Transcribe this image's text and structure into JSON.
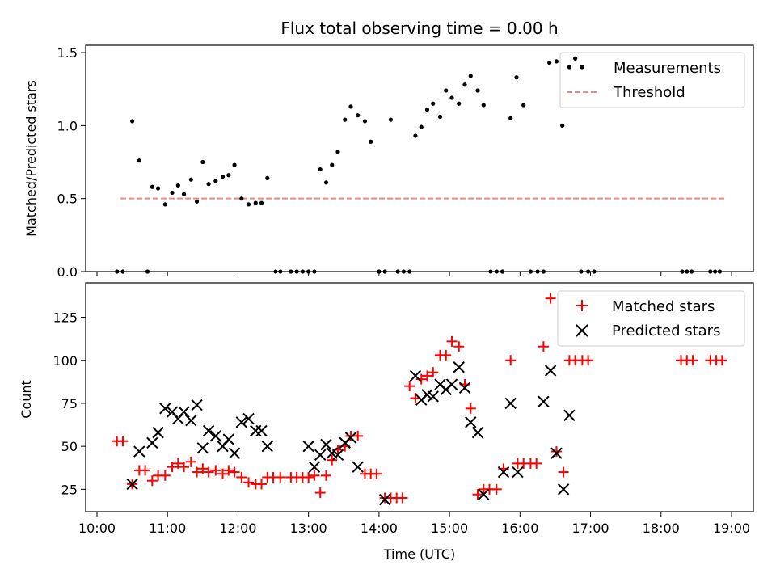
{
  "chart_data": [
    {
      "type": "scatter",
      "title": "Flux total observing time = 0.00 h",
      "ylabel": "Matched/Predicted stars",
      "xlabel": "",
      "xlim": [
        "10:00",
        "19:00"
      ],
      "ylim": [
        0,
        1.55
      ],
      "yticks": [
        0.0,
        0.5,
        1.0,
        1.5
      ],
      "ytick_labels": [
        "0.0",
        "0.5",
        "1.0",
        "1.5"
      ],
      "legend_position": "top-right",
      "series": [
        {
          "name": "Measurements",
          "marker": "dot",
          "color": "#000000",
          "points": [
            [
              "10:17",
              0
            ],
            [
              "10:22",
              0
            ],
            [
              "10:30",
              1.03
            ],
            [
              "10:36",
              0.76
            ],
            [
              "10:43",
              0
            ],
            [
              "10:47",
              0.58
            ],
            [
              "10:52",
              0.57
            ],
            [
              "10:58",
              0.46
            ],
            [
              "11:04",
              0.54
            ],
            [
              "11:09",
              0.59
            ],
            [
              "11:14",
              0.53
            ],
            [
              "11:20",
              0.63
            ],
            [
              "11:25",
              0.48
            ],
            [
              "11:30",
              0.75
            ],
            [
              "11:35",
              0.6
            ],
            [
              "11:41",
              0.62
            ],
            [
              "11:47",
              0.65
            ],
            [
              "11:52",
              0.66
            ],
            [
              "11:57",
              0.73
            ],
            [
              "12:03",
              0.5
            ],
            [
              "12:09",
              0.46
            ],
            [
              "12:15",
              0.47
            ],
            [
              "12:20",
              0.47
            ],
            [
              "12:25",
              0.64
            ],
            [
              "12:32",
              0
            ],
            [
              "12:36",
              0
            ],
            [
              "12:45",
              0
            ],
            [
              "12:50",
              0
            ],
            [
              "12:55",
              0
            ],
            [
              "13:00",
              0
            ],
            [
              "13:05",
              0
            ],
            [
              "13:10",
              0.7
            ],
            [
              "13:15",
              0.61
            ],
            [
              "13:20",
              0.73
            ],
            [
              "13:25",
              0.82
            ],
            [
              "13:31",
              1.04
            ],
            [
              "13:36",
              1.13
            ],
            [
              "13:42",
              1.07
            ],
            [
              "13:48",
              1.03
            ],
            [
              "13:53",
              0.89
            ],
            [
              "14:00",
              0
            ],
            [
              "14:05",
              0
            ],
            [
              "14:10",
              1.04
            ],
            [
              "14:16",
              0
            ],
            [
              "14:21",
              0
            ],
            [
              "14:26",
              0
            ],
            [
              "14:31",
              0.93
            ],
            [
              "14:36",
              0.99
            ],
            [
              "14:41",
              1.11
            ],
            [
              "14:46",
              1.15
            ],
            [
              "14:52",
              1.06
            ],
            [
              "14:57",
              1.24
            ],
            [
              "15:02",
              1.19
            ],
            [
              "15:08",
              1.15
            ],
            [
              "15:13",
              1.28
            ],
            [
              "15:18",
              1.34
            ],
            [
              "15:24",
              1.24
            ],
            [
              "15:29",
              1.14
            ],
            [
              "15:35",
              0
            ],
            [
              "15:40",
              0
            ],
            [
              "15:45",
              0
            ],
            [
              "15:52",
              1.05
            ],
            [
              "15:57",
              1.33
            ],
            [
              "16:03",
              1.14
            ],
            [
              "16:09",
              0
            ],
            [
              "16:15",
              0
            ],
            [
              "16:20",
              0
            ],
            [
              "16:25",
              1.43
            ],
            [
              "16:31",
              1.44
            ],
            [
              "16:36",
              1.0
            ],
            [
              "16:42",
              1.4
            ],
            [
              "16:47",
              1.46
            ],
            [
              "16:52",
              0
            ],
            [
              "16:58",
              0
            ],
            [
              "17:03",
              0
            ],
            [
              "18:18",
              0
            ],
            [
              "18:22",
              0
            ],
            [
              "18:26",
              0
            ],
            [
              "18:42",
              0
            ],
            [
              "18:46",
              0
            ],
            [
              "18:50",
              0
            ]
          ]
        },
        {
          "name": "Threshold",
          "marker": "dashed-line",
          "color": "#ff7f7f",
          "points": [
            [
              "10:20",
              0.5
            ],
            [
              "18:55",
              0.5
            ]
          ]
        }
      ]
    },
    {
      "type": "scatter",
      "title": "",
      "xlabel": "Time (UTC)",
      "ylabel": "Count",
      "xlim": [
        "10:00",
        "19:00"
      ],
      "xticks": [
        "10:00",
        "11:00",
        "12:00",
        "13:00",
        "14:00",
        "15:00",
        "16:00",
        "17:00",
        "18:00",
        "19:00"
      ],
      "ylim": [
        12,
        145
      ],
      "yticks": [
        25,
        50,
        75,
        100,
        125
      ],
      "ytick_labels": [
        "25",
        "50",
        "75",
        "100",
        "125"
      ],
      "legend_position": "top-right",
      "series": [
        {
          "name": "Matched stars",
          "marker": "plus",
          "color": "#ff0000",
          "points": [
            [
              "10:17",
              53
            ],
            [
              "10:22",
              53
            ],
            [
              "10:30",
              28
            ],
            [
              "10:36",
              36
            ],
            [
              "10:41",
              36
            ],
            [
              "10:47",
              30
            ],
            [
              "10:52",
              33
            ],
            [
              "10:58",
              33
            ],
            [
              "11:04",
              38
            ],
            [
              "11:09",
              40
            ],
            [
              "11:14",
              38
            ],
            [
              "11:20",
              41
            ],
            [
              "11:25",
              35
            ],
            [
              "11:30",
              37
            ],
            [
              "11:35",
              35
            ],
            [
              "11:41",
              36
            ],
            [
              "11:47",
              34
            ],
            [
              "11:52",
              36
            ],
            [
              "11:57",
              35
            ],
            [
              "12:03",
              32
            ],
            [
              "12:09",
              29
            ],
            [
              "12:15",
              28
            ],
            [
              "12:20",
              28
            ],
            [
              "12:25",
              32
            ],
            [
              "12:30",
              32
            ],
            [
              "12:36",
              32
            ],
            [
              "12:45",
              32
            ],
            [
              "12:50",
              32
            ],
            [
              "12:55",
              32
            ],
            [
              "13:00",
              32
            ],
            [
              "13:05",
              33
            ],
            [
              "13:10",
              23
            ],
            [
              "13:15",
              33
            ],
            [
              "13:20",
              42
            ],
            [
              "13:25",
              48
            ],
            [
              "13:31",
              50
            ],
            [
              "13:36",
              56
            ],
            [
              "13:42",
              56
            ],
            [
              "13:48",
              34
            ],
            [
              "13:53",
              34
            ],
            [
              "13:58",
              34
            ],
            [
              "14:05",
              20
            ],
            [
              "14:10",
              20
            ],
            [
              "14:15",
              20
            ],
            [
              "14:20",
              20
            ],
            [
              "14:26",
              85
            ],
            [
              "14:31",
              78
            ],
            [
              "14:36",
              89
            ],
            [
              "14:41",
              91
            ],
            [
              "14:46",
              93
            ],
            [
              "14:52",
              103
            ],
            [
              "14:57",
              103
            ],
            [
              "15:02",
              111
            ],
            [
              "15:08",
              108
            ],
            [
              "15:13",
              86
            ],
            [
              "15:18",
              72
            ],
            [
              "15:24",
              22
            ],
            [
              "15:29",
              25
            ],
            [
              "15:34",
              25
            ],
            [
              "15:40",
              25
            ],
            [
              "15:46",
              37
            ],
            [
              "15:52",
              100
            ],
            [
              "15:58",
              40
            ],
            [
              "16:03",
              40
            ],
            [
              "16:09",
              40
            ],
            [
              "16:14",
              40
            ],
            [
              "16:20",
              108
            ],
            [
              "16:26",
              136
            ],
            [
              "16:31",
              47
            ],
            [
              "16:37",
              35
            ],
            [
              "16:42",
              100
            ],
            [
              "16:47",
              100
            ],
            [
              "16:53",
              100
            ],
            [
              "16:58",
              100
            ],
            [
              "18:17",
              100
            ],
            [
              "18:22",
              100
            ],
            [
              "18:27",
              100
            ],
            [
              "18:42",
              100
            ],
            [
              "18:47",
              100
            ],
            [
              "18:52",
              100
            ]
          ]
        },
        {
          "name": "Predicted stars",
          "marker": "x",
          "color": "#000000",
          "points": [
            [
              "10:30",
              28
            ],
            [
              "10:36",
              47
            ],
            [
              "10:47",
              52
            ],
            [
              "10:52",
              58
            ],
            [
              "10:58",
              72
            ],
            [
              "11:04",
              70
            ],
            [
              "11:09",
              66
            ],
            [
              "11:14",
              70
            ],
            [
              "11:20",
              65
            ],
            [
              "11:25",
              74
            ],
            [
              "11:30",
              49
            ],
            [
              "11:35",
              59
            ],
            [
              "11:41",
              56
            ],
            [
              "11:47",
              50
            ],
            [
              "11:52",
              54
            ],
            [
              "11:57",
              46
            ],
            [
              "12:03",
              64
            ],
            [
              "12:09",
              66
            ],
            [
              "12:15",
              59
            ],
            [
              "12:20",
              59
            ],
            [
              "12:25",
              50
            ],
            [
              "13:00",
              50
            ],
            [
              "13:05",
              38
            ],
            [
              "13:10",
              45
            ],
            [
              "13:15",
              51
            ],
            [
              "13:20",
              46
            ],
            [
              "13:25",
              45
            ],
            [
              "13:31",
              52
            ],
            [
              "13:36",
              55
            ],
            [
              "13:42",
              38
            ],
            [
              "14:05",
              19
            ],
            [
              "14:31",
              91
            ],
            [
              "14:36",
              77
            ],
            [
              "14:41",
              80
            ],
            [
              "14:46",
              79
            ],
            [
              "14:52",
              86
            ],
            [
              "14:57",
              83
            ],
            [
              "15:02",
              86
            ],
            [
              "15:08",
              96
            ],
            [
              "15:13",
              84
            ],
            [
              "15:18",
              64
            ],
            [
              "15:24",
              58
            ],
            [
              "15:29",
              22
            ],
            [
              "15:46",
              35
            ],
            [
              "15:52",
              75
            ],
            [
              "15:58",
              35
            ],
            [
              "16:20",
              76
            ],
            [
              "16:26",
              94
            ],
            [
              "16:31",
              46
            ],
            [
              "16:37",
              25
            ],
            [
              "16:42",
              68
            ]
          ]
        }
      ]
    }
  ]
}
